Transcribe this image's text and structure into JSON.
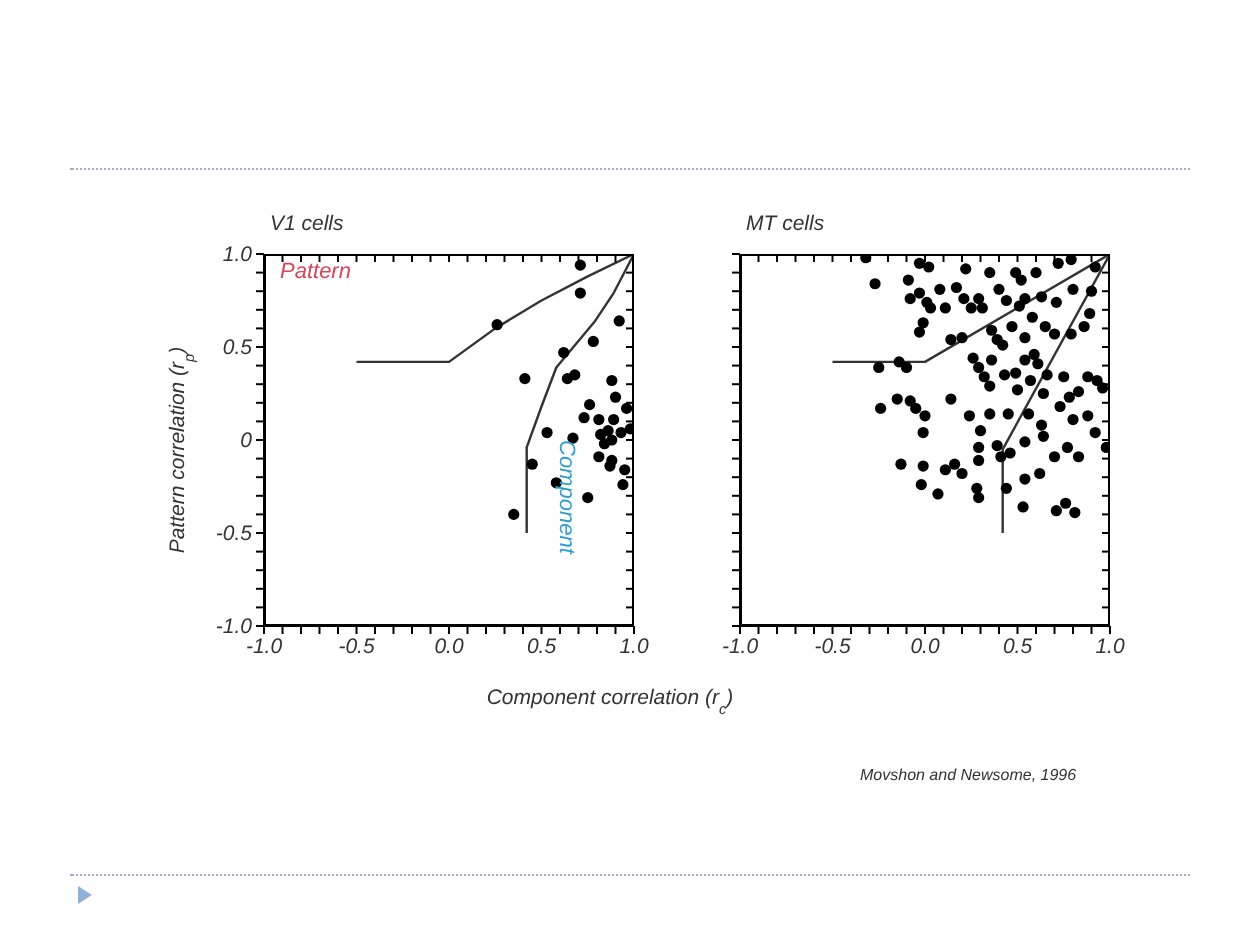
{
  "chart_data": [
    {
      "type": "scatter",
      "title": "V1 cells",
      "ylabel": "Pattern correlation (r$_{p}$)",
      "xlabel": "Component correlation (r$_{c}$)",
      "annotations": [
        "Pattern",
        "Component"
      ],
      "xlim": [
        -1,
        1
      ],
      "ylim": [
        -1,
        1
      ],
      "xticks": [
        {
          "value": -1,
          "label": "-1.0"
        },
        {
          "value": -0.9,
          "label": null
        },
        {
          "value": -0.8,
          "label": null
        },
        {
          "value": -0.7,
          "label": null
        },
        {
          "value": -0.6,
          "label": null
        },
        {
          "value": -0.5,
          "label": "-0.5"
        },
        {
          "value": -0.4,
          "label": null
        },
        {
          "value": -0.3,
          "label": null
        },
        {
          "value": -0.2,
          "label": null
        },
        {
          "value": -0.1,
          "label": null
        },
        {
          "value": 0,
          "label": "0.0"
        },
        {
          "value": 0.1,
          "label": null
        },
        {
          "value": 0.2,
          "label": null
        },
        {
          "value": 0.3,
          "label": null
        },
        {
          "value": 0.4,
          "label": null
        },
        {
          "value": 0.5,
          "label": "0.5"
        },
        {
          "value": 0.6,
          "label": null
        },
        {
          "value": 0.7,
          "label": null
        },
        {
          "value": 0.8,
          "label": null
        },
        {
          "value": 0.9,
          "label": null
        },
        {
          "value": 1,
          "label": "1.0"
        }
      ],
      "yticks": [
        {
          "value": -1,
          "label": "-1.0"
        },
        {
          "value": -0.9,
          "label": null
        },
        {
          "value": -0.8,
          "label": null
        },
        {
          "value": -0.7,
          "label": null
        },
        {
          "value": -0.6,
          "label": null
        },
        {
          "value": -0.5,
          "label": "-0.5"
        },
        {
          "value": -0.4,
          "label": null
        },
        {
          "value": -0.3,
          "label": null
        },
        {
          "value": -0.2,
          "label": null
        },
        {
          "value": -0.1,
          "label": null
        },
        0,
        {
          "value": 0.1,
          "label": null
        },
        {
          "value": 0.2,
          "label": null
        },
        {
          "value": 0.3,
          "label": null
        },
        {
          "value": 0.4,
          "label": null
        },
        {
          "value": 0.5,
          "label": "0.5"
        },
        {
          "value": 0.6,
          "label": null
        },
        {
          "value": 0.7,
          "label": null
        },
        {
          "value": 0.8,
          "label": null
        },
        {
          "value": 0.9,
          "label": null
        },
        {
          "value": 1,
          "label": "1.0"
        }
      ],
      "series": [
        {
          "marker": "circle",
          "color": "#000000",
          "x": [
            0.71,
            0.71,
            0.26,
            0.92,
            0.78,
            0.41,
            0.62,
            0.64,
            0.68,
            0.88,
            0.76,
            0.9,
            0.96,
            0.73,
            0.81,
            0.89,
            0.86,
            0.93,
            0.98,
            0.82,
            0.53,
            0.67,
            0.88,
            0.84,
            0.81,
            0.88,
            0.87,
            0.95,
            0.45,
            0.58,
            0.75,
            0.94,
            0.35
          ],
          "values": [
            0.94,
            0.79,
            0.62,
            0.64,
            0.53,
            0.33,
            0.47,
            0.33,
            0.35,
            0.32,
            0.19,
            0.23,
            0.17,
            0.12,
            0.11,
            0.11,
            0.05,
            0.04,
            0.06,
            0.03,
            0.04,
            0.01,
            0,
            -0.02,
            -0.09,
            -0.11,
            -0.14,
            -0.16,
            -0.13,
            -0.23,
            -0.31,
            -0.24,
            -0.4
          ]
        },
        {
          "type": "line",
          "marker": "none",
          "color": "#333333",
          "x": [
            -0.5,
            0,
            0.25,
            0.5,
            0.75,
            1
          ],
          "values": [
            0.42,
            0.42,
            0.6,
            0.75,
            0.88,
            1
          ]
        },
        {
          "type": "line",
          "marker": "none",
          "color": "#333333",
          "x": [
            0.42,
            0.42,
            0.5,
            0.58,
            0.79,
            0.89,
            1
          ],
          "values": [
            -0.5,
            -0.04,
            0.18,
            0.39,
            0.64,
            0.79,
            1
          ]
        }
      ]
    },
    {
      "type": "scatter",
      "title": "MT cells",
      "annotations": [
        "Movshon and Newsome, 1996"
      ],
      "tick_labels": "x",
      "xlim": [
        -1,
        1
      ],
      "ylim": [
        -1,
        1
      ],
      "xticks": [
        {
          "value": -1,
          "label": "-1.0"
        },
        {
          "value": -0.9,
          "label": null
        },
        {
          "value": -0.8,
          "label": null
        },
        {
          "value": -0.7,
          "label": null
        },
        {
          "value": -0.6,
          "label": null
        },
        {
          "value": -0.5,
          "label": "-0.5"
        },
        {
          "value": -0.4,
          "label": null
        },
        {
          "value": -0.3,
          "label": null
        },
        {
          "value": -0.2,
          "label": null
        },
        {
          "value": -0.1,
          "label": null
        },
        {
          "value": 0,
          "label": "0.0"
        },
        {
          "value": 0.1,
          "label": null
        },
        {
          "value": 0.2,
          "label": null
        },
        {
          "value": 0.3,
          "label": null
        },
        {
          "value": 0.4,
          "label": null
        },
        {
          "value": 0.5,
          "label": "0.5"
        },
        {
          "value": 0.6,
          "label": null
        },
        {
          "value": 0.7,
          "label": null
        },
        {
          "value": 0.8,
          "label": null
        },
        {
          "value": 0.9,
          "label": null
        },
        {
          "value": 1,
          "label": "1.0"
        }
      ],
      "yticks": [
        -1,
        -0.9,
        -0.8,
        -0.7,
        -0.6,
        -0.5,
        -0.4,
        -0.3,
        -0.2,
        -0.1,
        0,
        0.1,
        0.2,
        0.3,
        0.4,
        0.5,
        0.6,
        0.7,
        0.8,
        0.9,
        1
      ],
      "series": [
        {
          "marker": "circle",
          "color": "#000000",
          "x": [
            -0.32,
            -0.27,
            -0.03,
            0.02,
            0.22,
            0.35,
            0.49,
            0.52,
            0.6,
            0.72,
            0.79,
            0.92,
            -0.09,
            -0.08,
            -0.03,
            0.01,
            0.03,
            0.08,
            0.11,
            0.17,
            0.21,
            0.25,
            0.29,
            0.31,
            0.4,
            0.44,
            0.51,
            0.54,
            0.58,
            0.63,
            0.71,
            0.8,
            0.9,
            -0.03,
            -0.01,
            0.14,
            0.2,
            0.36,
            0.39,
            0.42,
            0.47,
            0.54,
            0.65,
            0.7,
            0.79,
            0.86,
            0.89,
            -0.25,
            -0.14,
            -0.1,
            0.26,
            0.29,
            0.36,
            0.32,
            0.43,
            0.49,
            0.54,
            0.59,
            0.61,
            0.57,
            0.66,
            0.75,
            0.88,
            0.93,
            0.96,
            0.35,
            0.5,
            0.64,
            0.78,
            0.83,
            -0.15,
            -0.24,
            -0.08,
            -0.05,
            0.14,
            0,
            -0.01,
            0.24,
            0.3,
            0.35,
            0.45,
            0.56,
            0.63,
            0.73,
            0.8,
            0.88,
            0.92,
            0.98,
            0.29,
            0.39,
            0.46,
            0.54,
            0.64,
            0.7,
            0.77,
            0.83,
            0.29,
            0.41,
            -0.13,
            -0.01,
            0.11,
            0.16,
            0.2,
            0.62,
            0.54,
            -0.02,
            0.07,
            0.28,
            0.29,
            0.44,
            0.53,
            0.71,
            0.76,
            0.81
          ],
          "values": [
            0.98,
            0.84,
            0.95,
            0.93,
            0.92,
            0.9,
            0.9,
            0.86,
            0.9,
            0.95,
            0.97,
            0.93,
            0.86,
            0.76,
            0.79,
            0.74,
            0.71,
            0.81,
            0.71,
            0.82,
            0.76,
            0.71,
            0.76,
            0.71,
            0.81,
            0.75,
            0.72,
            0.76,
            0.66,
            0.77,
            0.74,
            0.81,
            0.8,
            0.58,
            0.63,
            0.54,
            0.55,
            0.59,
            0.54,
            0.51,
            0.61,
            0.55,
            0.61,
            0.57,
            0.57,
            0.61,
            0.68,
            0.39,
            0.42,
            0.39,
            0.44,
            0.39,
            0.43,
            0.34,
            0.35,
            0.36,
            0.43,
            0.46,
            0.41,
            0.32,
            0.35,
            0.34,
            0.34,
            0.32,
            0.28,
            0.29,
            0.27,
            0.25,
            0.23,
            0.26,
            0.22,
            0.17,
            0.21,
            0.17,
            0.22,
            0.13,
            0.04,
            0.13,
            0.05,
            0.14,
            0.14,
            0.14,
            0.08,
            0.18,
            0.11,
            0.13,
            0.04,
            -0.04,
            -0.04,
            -0.03,
            -0.07,
            -0.01,
            0.02,
            -0.09,
            -0.04,
            -0.09,
            -0.11,
            -0.09,
            -0.13,
            -0.14,
            -0.16,
            -0.13,
            -0.18,
            -0.18,
            -0.21,
            -0.24,
            -0.29,
            -0.26,
            -0.31,
            -0.26,
            -0.36,
            -0.38,
            -0.34,
            -0.39
          ]
        },
        {
          "type": "line",
          "marker": "none",
          "color": "#333333",
          "x": [
            -0.5,
            0,
            1
          ],
          "values": [
            0.42,
            0.42,
            1
          ]
        },
        {
          "type": "line",
          "marker": "none",
          "color": "#333333",
          "x": [
            0.42,
            0.42,
            1
          ],
          "values": [
            -0.5,
            -0.05,
            1
          ]
        }
      ]
    }
  ]
}
